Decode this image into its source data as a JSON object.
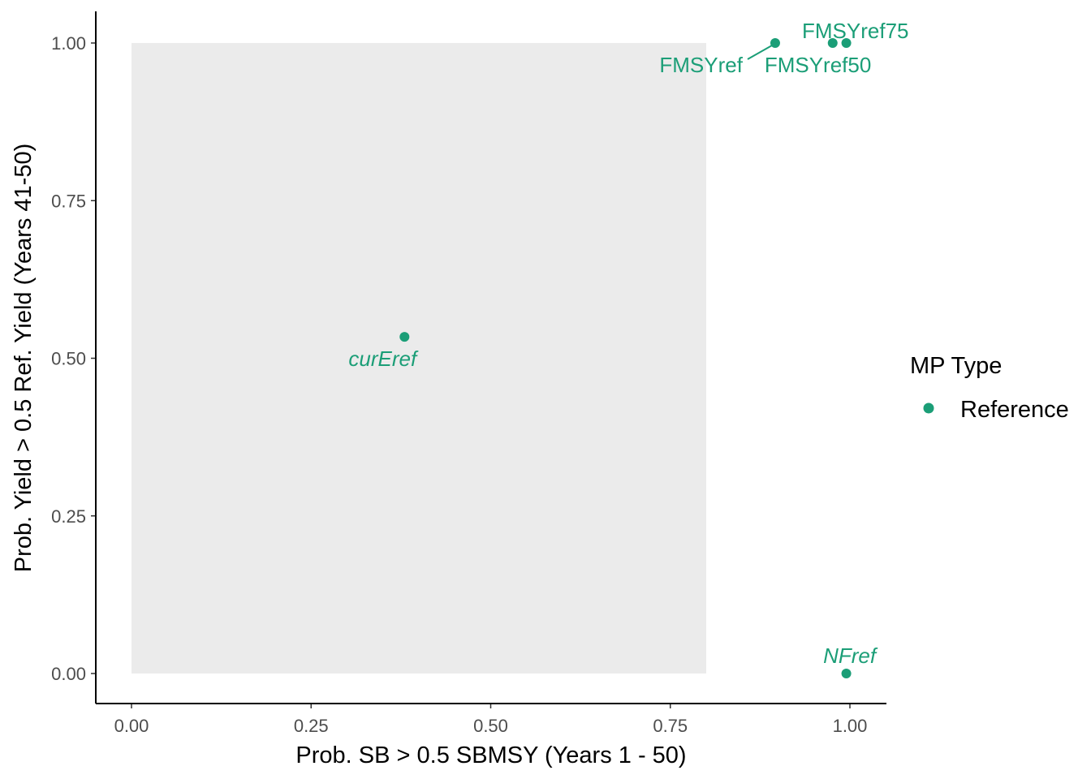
{
  "chart_data": {
    "type": "scatter",
    "xlabel": "Prob. SB > 0.5 SBMSY (Years 1 - 50)",
    "ylabel": "Prob. Yield > 0.5 Ref. Yield (Years 41-50)",
    "xlim": [
      0,
      1
    ],
    "ylim": [
      0,
      1
    ],
    "x_ticks": [
      "0.00",
      "0.25",
      "0.50",
      "0.75",
      "1.00"
    ],
    "y_ticks": [
      "0.00",
      "0.25",
      "0.50",
      "0.75",
      "1.00"
    ],
    "grid": false,
    "shaded_region": {
      "x": [
        0,
        0.8
      ],
      "y": [
        0,
        1
      ],
      "color": "#ebebeb"
    },
    "point_color": "#1b9e77",
    "legend": {
      "title": "MP Type",
      "entries": [
        "Reference"
      ],
      "position": "right"
    },
    "points": [
      {
        "label": "FMSYref",
        "x": 0.896,
        "y": 1.0,
        "italic": false
      },
      {
        "label": "FMSYref75",
        "x": 0.976,
        "y": 1.0,
        "italic": false
      },
      {
        "label": "FMSYref50",
        "x": 0.995,
        "y": 1.0,
        "italic": false
      },
      {
        "label": "curEref",
        "x": 0.38,
        "y": 0.534,
        "italic": true
      },
      {
        "label": "NFref",
        "x": 0.995,
        "y": 0.0,
        "italic": true
      }
    ]
  }
}
